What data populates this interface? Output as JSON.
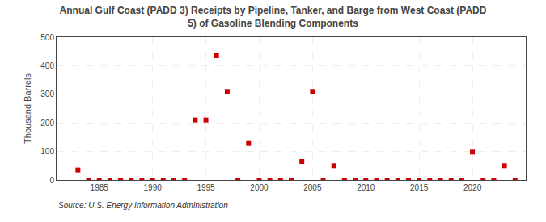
{
  "chart_data": {
    "type": "scatter",
    "title": "Annual Gulf Coast (PADD 3) Receipts by Pipeline, Tanker, and Barge from West Coast (PADD\n5) of Gasoline Blending Components",
    "ylabel": "Thousand Barrels",
    "annotations": [
      "Source: U.S. Energy Information Administration"
    ],
    "x": [
      1983,
      1984,
      1985,
      1986,
      1987,
      1988,
      1989,
      1990,
      1991,
      1992,
      1993,
      1994,
      1995,
      1996,
      1997,
      1998,
      1999,
      2000,
      2001,
      2002,
      2003,
      2004,
      2005,
      2006,
      2007,
      2008,
      2009,
      2010,
      2011,
      2012,
      2013,
      2014,
      2015,
      2016,
      2017,
      2018,
      2019,
      2020,
      2021,
      2022,
      2023,
      2024
    ],
    "values": [
      35,
      0,
      0,
      0,
      0,
      0,
      0,
      0,
      0,
      0,
      0,
      210,
      210,
      435,
      310,
      0,
      128,
      0,
      0,
      0,
      0,
      65,
      310,
      0,
      50,
      0,
      0,
      0,
      0,
      0,
      0,
      0,
      0,
      0,
      0,
      0,
      0,
      98,
      0,
      0,
      50,
      0
    ],
    "color": "#cc0000",
    "marker": "square",
    "xlim": [
      1981,
      2025
    ],
    "ylim": [
      0,
      500
    ],
    "xticks": [
      1985,
      1990,
      1995,
      2000,
      2005,
      2010,
      2015,
      2020
    ],
    "yticks": [
      0,
      100,
      200,
      300,
      400,
      500
    ],
    "grid": true
  }
}
